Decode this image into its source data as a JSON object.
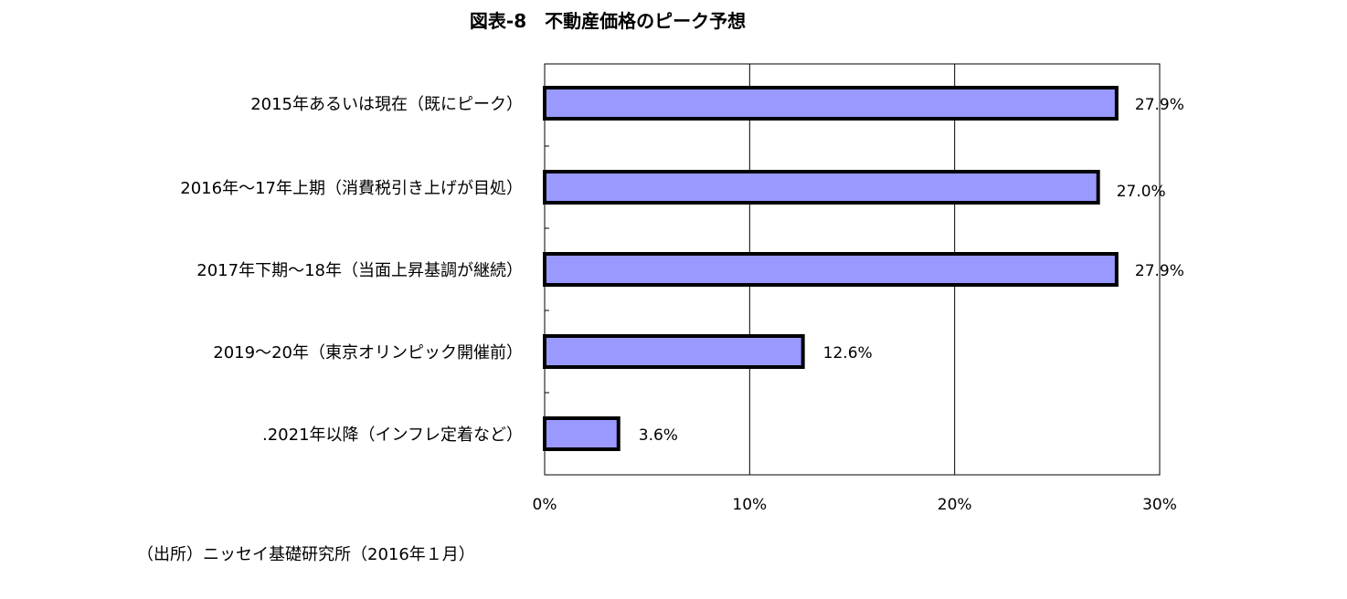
{
  "chart_data": {
    "type": "bar",
    "orientation": "horizontal",
    "title": "図表-8　不動産価格のピーク予想",
    "categories": [
      "2015年あるいは現在（既にピーク）",
      "2016年～17年上期（消費税引き上げが目処）",
      "2017年下期～18年（当面上昇基調が継続）",
      "2019～20年（東京オリンピック開催前）",
      ".2021年以降（インフレ定着など）"
    ],
    "values": [
      27.9,
      27.0,
      27.9,
      12.6,
      3.6
    ],
    "data_labels": [
      "27.9%",
      "27.0%",
      "27.9%",
      "12.6%",
      "3.6%"
    ],
    "xlim": [
      0,
      30
    ],
    "x_ticks": [
      0,
      10,
      20,
      30
    ],
    "x_tick_labels": [
      "0%",
      "10%",
      "20%",
      "30%"
    ],
    "grid": true,
    "bar_color": "#9999FF",
    "xlabel": "",
    "ylabel": ""
  },
  "source": "（出所）ニッセイ基礎研究所（2016年１月）"
}
